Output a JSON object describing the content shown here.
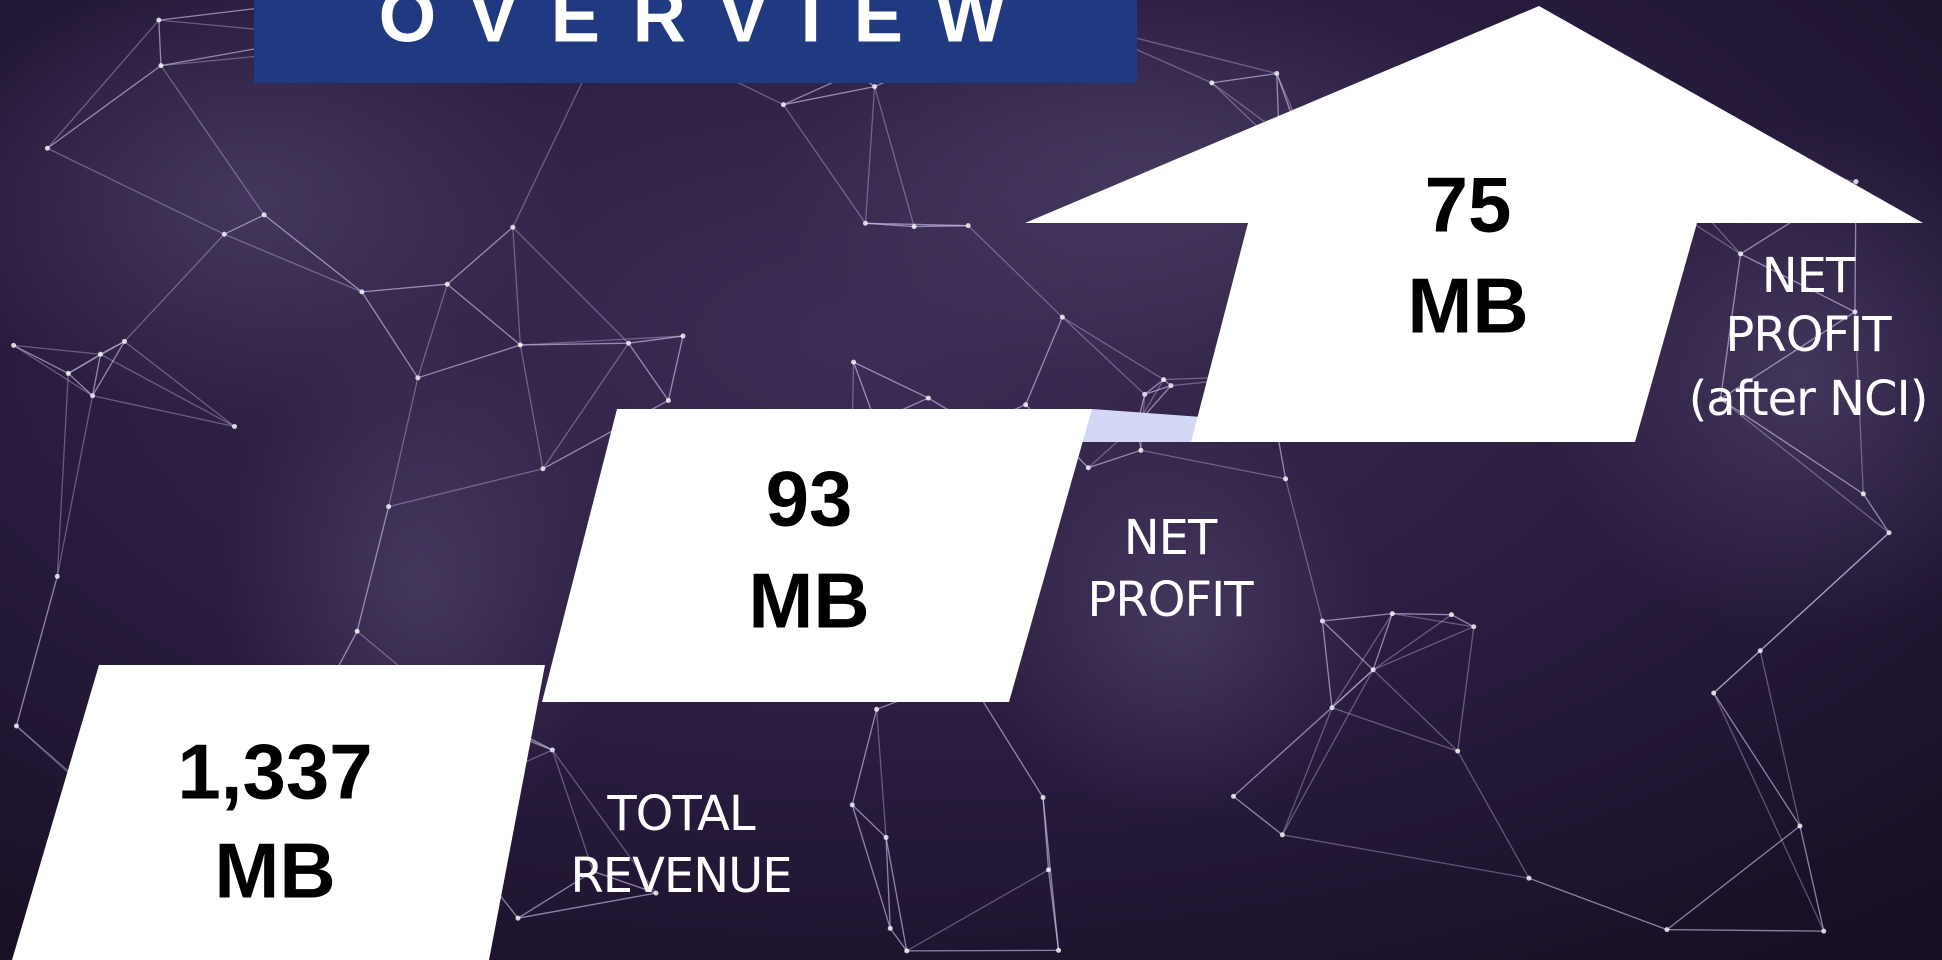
{
  "header": {
    "title": "O V E R V I E W"
  },
  "steps": [
    {
      "value": "1,337",
      "unit": "MB",
      "label": [
        "TOTAL",
        "REVENUE"
      ]
    },
    {
      "value": "93",
      "unit": "MB",
      "label": [
        "NET",
        "PROFIT"
      ]
    },
    {
      "value": "75",
      "unit": "MB",
      "label": [
        "NET",
        "PROFIT",
        "(after NCI)"
      ]
    }
  ]
}
